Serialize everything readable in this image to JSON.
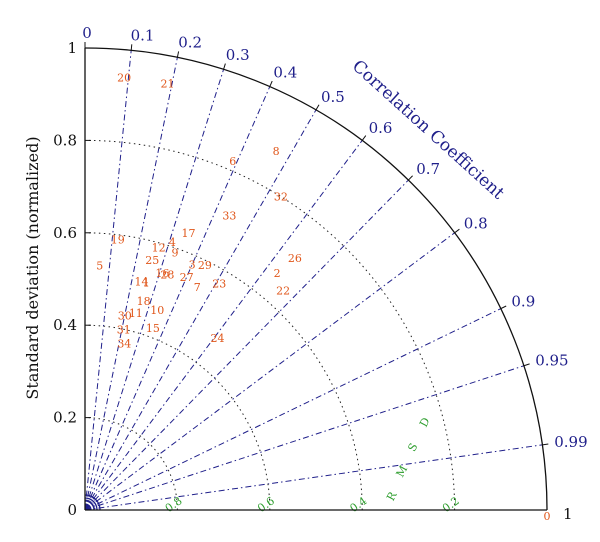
{
  "chart_data": {
    "type": "taylor-diagram",
    "ylabel": "Standard deviation (normalized)",
    "arc_label": "Correlation Coefficient",
    "rmsd_label": "R M S D",
    "std_ticks": [
      {
        "value": 0,
        "label": "0"
      },
      {
        "value": 0.2,
        "label": "0.2"
      },
      {
        "value": 0.4,
        "label": "0.4"
      },
      {
        "value": 0.6,
        "label": "0.6"
      },
      {
        "value": 0.8,
        "label": "0.8"
      },
      {
        "value": 1,
        "label": "1"
      }
    ],
    "x_end_label": "1",
    "std_range": [
      0,
      1
    ],
    "std_gridlines": [
      0.2,
      0.4,
      0.6,
      0.8
    ],
    "corr_ticks": [
      {
        "value": 0,
        "label": "0"
      },
      {
        "value": 0.1,
        "label": "0.1"
      },
      {
        "value": 0.2,
        "label": "0.2"
      },
      {
        "value": 0.3,
        "label": "0.3"
      },
      {
        "value": 0.4,
        "label": "0.4"
      },
      {
        "value": 0.5,
        "label": "0.5"
      },
      {
        "value": 0.6,
        "label": "0.6"
      },
      {
        "value": 0.7,
        "label": "0.7"
      },
      {
        "value": 0.8,
        "label": "0.8"
      },
      {
        "value": 0.9,
        "label": "0.9"
      },
      {
        "value": 0.95,
        "label": "0.95"
      },
      {
        "value": 0.99,
        "label": "0.99"
      }
    ],
    "rmsd_contours": [
      {
        "value": 0.2,
        "label": "0.2"
      },
      {
        "value": 0.4,
        "label": "0.4"
      },
      {
        "value": 0.6,
        "label": "0.6"
      },
      {
        "value": 0.8,
        "label": "0.8"
      }
    ],
    "reference": {
      "std": 1,
      "corr": 1,
      "label": "0"
    },
    "points": [
      {
        "label": "2",
        "std": 0.66,
        "corr": 0.63
      },
      {
        "label": "3",
        "std": 0.58,
        "corr": 0.4
      },
      {
        "label": "4",
        "std": 0.61,
        "corr": 0.31
      },
      {
        "label": "5",
        "std": 0.53,
        "corr": 0.06
      },
      {
        "label": "6",
        "std": 0.82,
        "corr": 0.39
      },
      {
        "label": "7",
        "std": 0.54,
        "corr": 0.45
      },
      {
        "label": "8",
        "std": 0.88,
        "corr": 0.47
      },
      {
        "label": "9",
        "std": 0.59,
        "corr": 0.33
      },
      {
        "label": "10",
        "std": 0.46,
        "corr": 0.34
      },
      {
        "label": "11",
        "std": 0.44,
        "corr": 0.25
      },
      {
        "label": "12",
        "std": 0.59,
        "corr": 0.27
      },
      {
        "label": "14",
        "std": 0.51,
        "corr": 0.24
      },
      {
        "label": "15",
        "std": 0.42,
        "corr": 0.35
      },
      {
        "label": "16",
        "std": 0.54,
        "corr": 0.31
      },
      {
        "label": "17",
        "std": 0.64,
        "corr": 0.35
      },
      {
        "label": "18",
        "std": 0.47,
        "corr": 0.27
      },
      {
        "label": "19",
        "std": 0.59,
        "corr": 0.12
      },
      {
        "label": "20",
        "std": 0.94,
        "corr": 0.09
      },
      {
        "label": "21",
        "std": 0.94,
        "corr": 0.19
      },
      {
        "label": "22",
        "std": 0.64,
        "corr": 0.67
      },
      {
        "label": "23",
        "std": 0.57,
        "corr": 0.51
      },
      {
        "label": "24",
        "std": 0.47,
        "corr": 0.61
      },
      {
        "label": "25",
        "std": 0.56,
        "corr": 0.26
      },
      {
        "label": "26",
        "std": 0.71,
        "corr": 0.64
      },
      {
        "label": "27",
        "std": 0.55,
        "corr": 0.4
      },
      {
        "label": "28",
        "std": 0.54,
        "corr": 0.33
      },
      {
        "label": "29",
        "std": 0.59,
        "corr": 0.44
      },
      {
        "label": "30",
        "std": 0.43,
        "corr": 0.2
      },
      {
        "label": "31",
        "std": 0.4,
        "corr": 0.21
      },
      {
        "label": "32",
        "std": 0.8,
        "corr": 0.53
      },
      {
        "label": "33",
        "std": 0.71,
        "corr": 0.44
      },
      {
        "label": "34",
        "std": 0.37,
        "corr": 0.23
      },
      {
        "label": "1",
        "std": 0.51,
        "corr": 0.26
      }
    ],
    "colors": {
      "frame": "#111111",
      "corr_lines": "#1f1f8a",
      "std_arcs": "#222222",
      "rmsd": "#2e9e2e",
      "points": "#e0561a"
    }
  }
}
